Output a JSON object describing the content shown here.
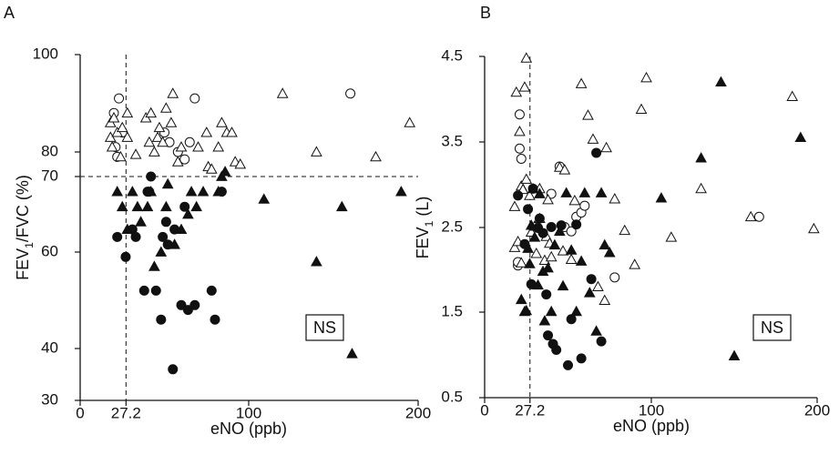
{
  "chart_data": [
    {
      "type": "scatter",
      "panel_label": "A",
      "xlabel": "eNO (ppb)",
      "ylabel_main": "FEV",
      "ylabel_sub": "1",
      "ylabel_rest": "/FVC (%)",
      "x_ticks": [
        "0",
        "27.2",
        "100",
        "200"
      ],
      "y_ticks": [
        "30",
        "40",
        "60",
        "70",
        "80",
        "100"
      ],
      "xlim": [
        0,
        200
      ],
      "ylim": [
        30,
        100
      ],
      "x_cutoff": 27.2,
      "y_cutoff": 70,
      "annotation": "NS",
      "series": [
        {
          "marker": "open-circle",
          "points": [
            [
              20,
              88
            ],
            [
              21,
              81
            ],
            [
              22,
              78
            ],
            [
              23,
              91
            ],
            [
              25,
              84
            ],
            [
              50,
              84
            ],
            [
              53,
              82
            ],
            [
              58,
              80
            ],
            [
              62,
              77
            ],
            [
              65,
              82
            ],
            [
              68,
              91
            ],
            [
              160,
              92
            ]
          ]
        },
        {
          "marker": "open-triangle",
          "points": [
            [
              18,
              83
            ],
            [
              18,
              86
            ],
            [
              19,
              81
            ],
            [
              20,
              87
            ],
            [
              22,
              84
            ],
            [
              24,
              78
            ],
            [
              25,
              85
            ],
            [
              28,
              83
            ],
            [
              28,
              88
            ],
            [
              33,
              79
            ],
            [
              39,
              87
            ],
            [
              41,
              82
            ],
            [
              42,
              88
            ],
            [
              44,
              80
            ],
            [
              46,
              83
            ],
            [
              47,
              85
            ],
            [
              49,
              82
            ],
            [
              51,
              89
            ],
            [
              54,
              86
            ],
            [
              55,
              92
            ],
            [
              58,
              76
            ],
            [
              60,
              81
            ],
            [
              70,
              81
            ],
            [
              75,
              84
            ],
            [
              76,
              74
            ],
            [
              78,
              73
            ],
            [
              82,
              81
            ],
            [
              84,
              86
            ],
            [
              87,
              84
            ],
            [
              90,
              84
            ],
            [
              92,
              76
            ],
            [
              95,
              75
            ],
            [
              120,
              92
            ],
            [
              140,
              80
            ],
            [
              175,
              78
            ],
            [
              195,
              86
            ]
          ]
        },
        {
          "marker": "filled-circle",
          "points": [
            [
              22,
              62
            ],
            [
              27,
              59
            ],
            [
              31,
              63
            ],
            [
              33,
              62
            ],
            [
              38,
              52
            ],
            [
              40,
              68
            ],
            [
              41,
              68
            ],
            [
              42,
              70
            ],
            [
              45,
              52
            ],
            [
              48,
              46
            ],
            [
              49,
              62
            ],
            [
              51,
              64
            ],
            [
              52,
              61
            ],
            [
              55,
              36
            ],
            [
              56,
              63
            ],
            [
              60,
              49
            ],
            [
              62,
              66
            ],
            [
              64,
              48
            ],
            [
              68,
              49
            ],
            [
              78,
              52
            ],
            [
              80,
              46
            ],
            [
              84,
              68
            ]
          ]
        },
        {
          "marker": "filled-triangle",
          "points": [
            [
              22,
              68
            ],
            [
              25,
              66
            ],
            [
              28,
              63
            ],
            [
              31,
              68
            ],
            [
              34,
              66
            ],
            [
              36,
              64
            ],
            [
              40,
              66
            ],
            [
              42,
              68
            ],
            [
              44,
              57
            ],
            [
              48,
              60
            ],
            [
              51,
              66
            ],
            [
              52,
              69
            ],
            [
              56,
              61
            ],
            [
              60,
              63
            ],
            [
              64,
              65
            ],
            [
              66,
              68
            ],
            [
              69,
              66
            ],
            [
              73,
              68
            ],
            [
              82,
              68
            ],
            [
              84,
              70
            ],
            [
              86,
              72
            ],
            [
              109,
              67
            ],
            [
              140,
              58
            ],
            [
              155,
              66
            ],
            [
              161,
              39
            ],
            [
              190,
              68
            ]
          ]
        }
      ]
    },
    {
      "type": "scatter",
      "panel_label": "B",
      "xlabel": "eNO (ppb)",
      "ylabel_main": "FEV",
      "ylabel_sub": "1",
      "ylabel_rest": " (L)",
      "x_ticks": [
        "0",
        "27.2",
        "100",
        "200"
      ],
      "y_ticks": [
        "0.5",
        "1.5",
        "2.5",
        "3.5",
        "4.5"
      ],
      "xlim": [
        0,
        200
      ],
      "ylim": [
        0.5,
        4.5
      ],
      "x_cutoff": 27.2,
      "annotation": "NS",
      "series": [
        {
          "marker": "open-circle",
          "points": [
            [
              20,
              2.05
            ],
            [
              20,
              2.09
            ],
            [
              21,
              3.82
            ],
            [
              21,
              3.42
            ],
            [
              22,
              3.3
            ],
            [
              40,
              2.89
            ],
            [
              45,
              3.21
            ],
            [
              48,
              2.5
            ],
            [
              52,
              2.45
            ],
            [
              55,
              2.62
            ],
            [
              58,
              2.67
            ],
            [
              60,
              2.75
            ],
            [
              78,
              1.91
            ],
            [
              165,
              2.62
            ]
          ]
        },
        {
          "marker": "open-triangle",
          "points": [
            [
              18,
              2.26
            ],
            [
              18,
              2.74
            ],
            [
              19,
              4.08
            ],
            [
              20,
              2.33
            ],
            [
              21,
              3.62
            ],
            [
              22,
              2.08
            ],
            [
              22,
              2.98
            ],
            [
              23,
              2.94
            ],
            [
              24,
              4.14
            ],
            [
              25,
              4.48
            ],
            [
              25,
              3.06
            ],
            [
              27,
              2.87
            ],
            [
              28,
              2.44
            ],
            [
              30,
              2.51
            ],
            [
              31,
              2.19
            ],
            [
              33,
              2.95
            ],
            [
              33,
              2.6
            ],
            [
              36,
              2.11
            ],
            [
              37,
              2.39
            ],
            [
              38,
              2.82
            ],
            [
              39,
              2.31
            ],
            [
              40,
              2.15
            ],
            [
              45,
              3.2
            ],
            [
              47,
              2.22
            ],
            [
              48,
              3.17
            ],
            [
              52,
              2.12
            ],
            [
              54,
              2.81
            ],
            [
              58,
              4.18
            ],
            [
              62,
              3.81
            ],
            [
              65,
              3.53
            ],
            [
              68,
              1.8
            ],
            [
              72,
              1.64
            ],
            [
              73,
              3.43
            ],
            [
              78,
              2.83
            ],
            [
              84,
              2.46
            ],
            [
              90,
              2.06
            ],
            [
              94,
              3.88
            ],
            [
              97,
              4.25
            ],
            [
              112,
              2.38
            ],
            [
              130,
              2.95
            ],
            [
              160,
              2.62
            ],
            [
              185,
              4.03
            ],
            [
              198,
              2.48
            ]
          ]
        },
        {
          "marker": "filled-circle",
          "points": [
            [
              20,
              2.87
            ],
            [
              24,
              2.3
            ],
            [
              26,
              2.71
            ],
            [
              28,
              1.83
            ],
            [
              29,
              2.95
            ],
            [
              32,
              2.49
            ],
            [
              33,
              2.6
            ],
            [
              35,
              2.43
            ],
            [
              37,
              1.71
            ],
            [
              38,
              1.23
            ],
            [
              40,
              2.5
            ],
            [
              41,
              1.13
            ],
            [
              43,
              1.06
            ],
            [
              46,
              2.52
            ],
            [
              50,
              0.88
            ],
            [
              52,
              1.42
            ],
            [
              55,
              2.53
            ],
            [
              58,
              0.96
            ],
            [
              64,
              1.89
            ],
            [
              67,
              3.37
            ],
            [
              70,
              1.16
            ]
          ]
        },
        {
          "marker": "filled-triangle",
          "points": [
            [
              22,
              1.65
            ],
            [
              24,
              1.51
            ],
            [
              25,
              1.52
            ],
            [
              26,
              2.25
            ],
            [
              27,
              2.07
            ],
            [
              28,
              2.52
            ],
            [
              29,
              2.95
            ],
            [
              30,
              2.38
            ],
            [
              32,
              1.82
            ],
            [
              33,
              2.89
            ],
            [
              35,
              1.98
            ],
            [
              36,
              1.4
            ],
            [
              38,
              2.02
            ],
            [
              40,
              1.51
            ],
            [
              42,
              2.29
            ],
            [
              45,
              2.45
            ],
            [
              47,
              1.81
            ],
            [
              49,
              2.9
            ],
            [
              52,
              2.23
            ],
            [
              55,
              1.51
            ],
            [
              58,
              2.1
            ],
            [
              60,
              2.9
            ],
            [
              63,
              1.73
            ],
            [
              67,
              1.28
            ],
            [
              70,
              2.9
            ],
            [
              72,
              2.29
            ],
            [
              75,
              2.2
            ],
            [
              106,
              2.84
            ],
            [
              130,
              3.31
            ],
            [
              142,
              4.2
            ],
            [
              150,
              0.99
            ],
            [
              190,
              3.55
            ]
          ]
        }
      ]
    }
  ]
}
